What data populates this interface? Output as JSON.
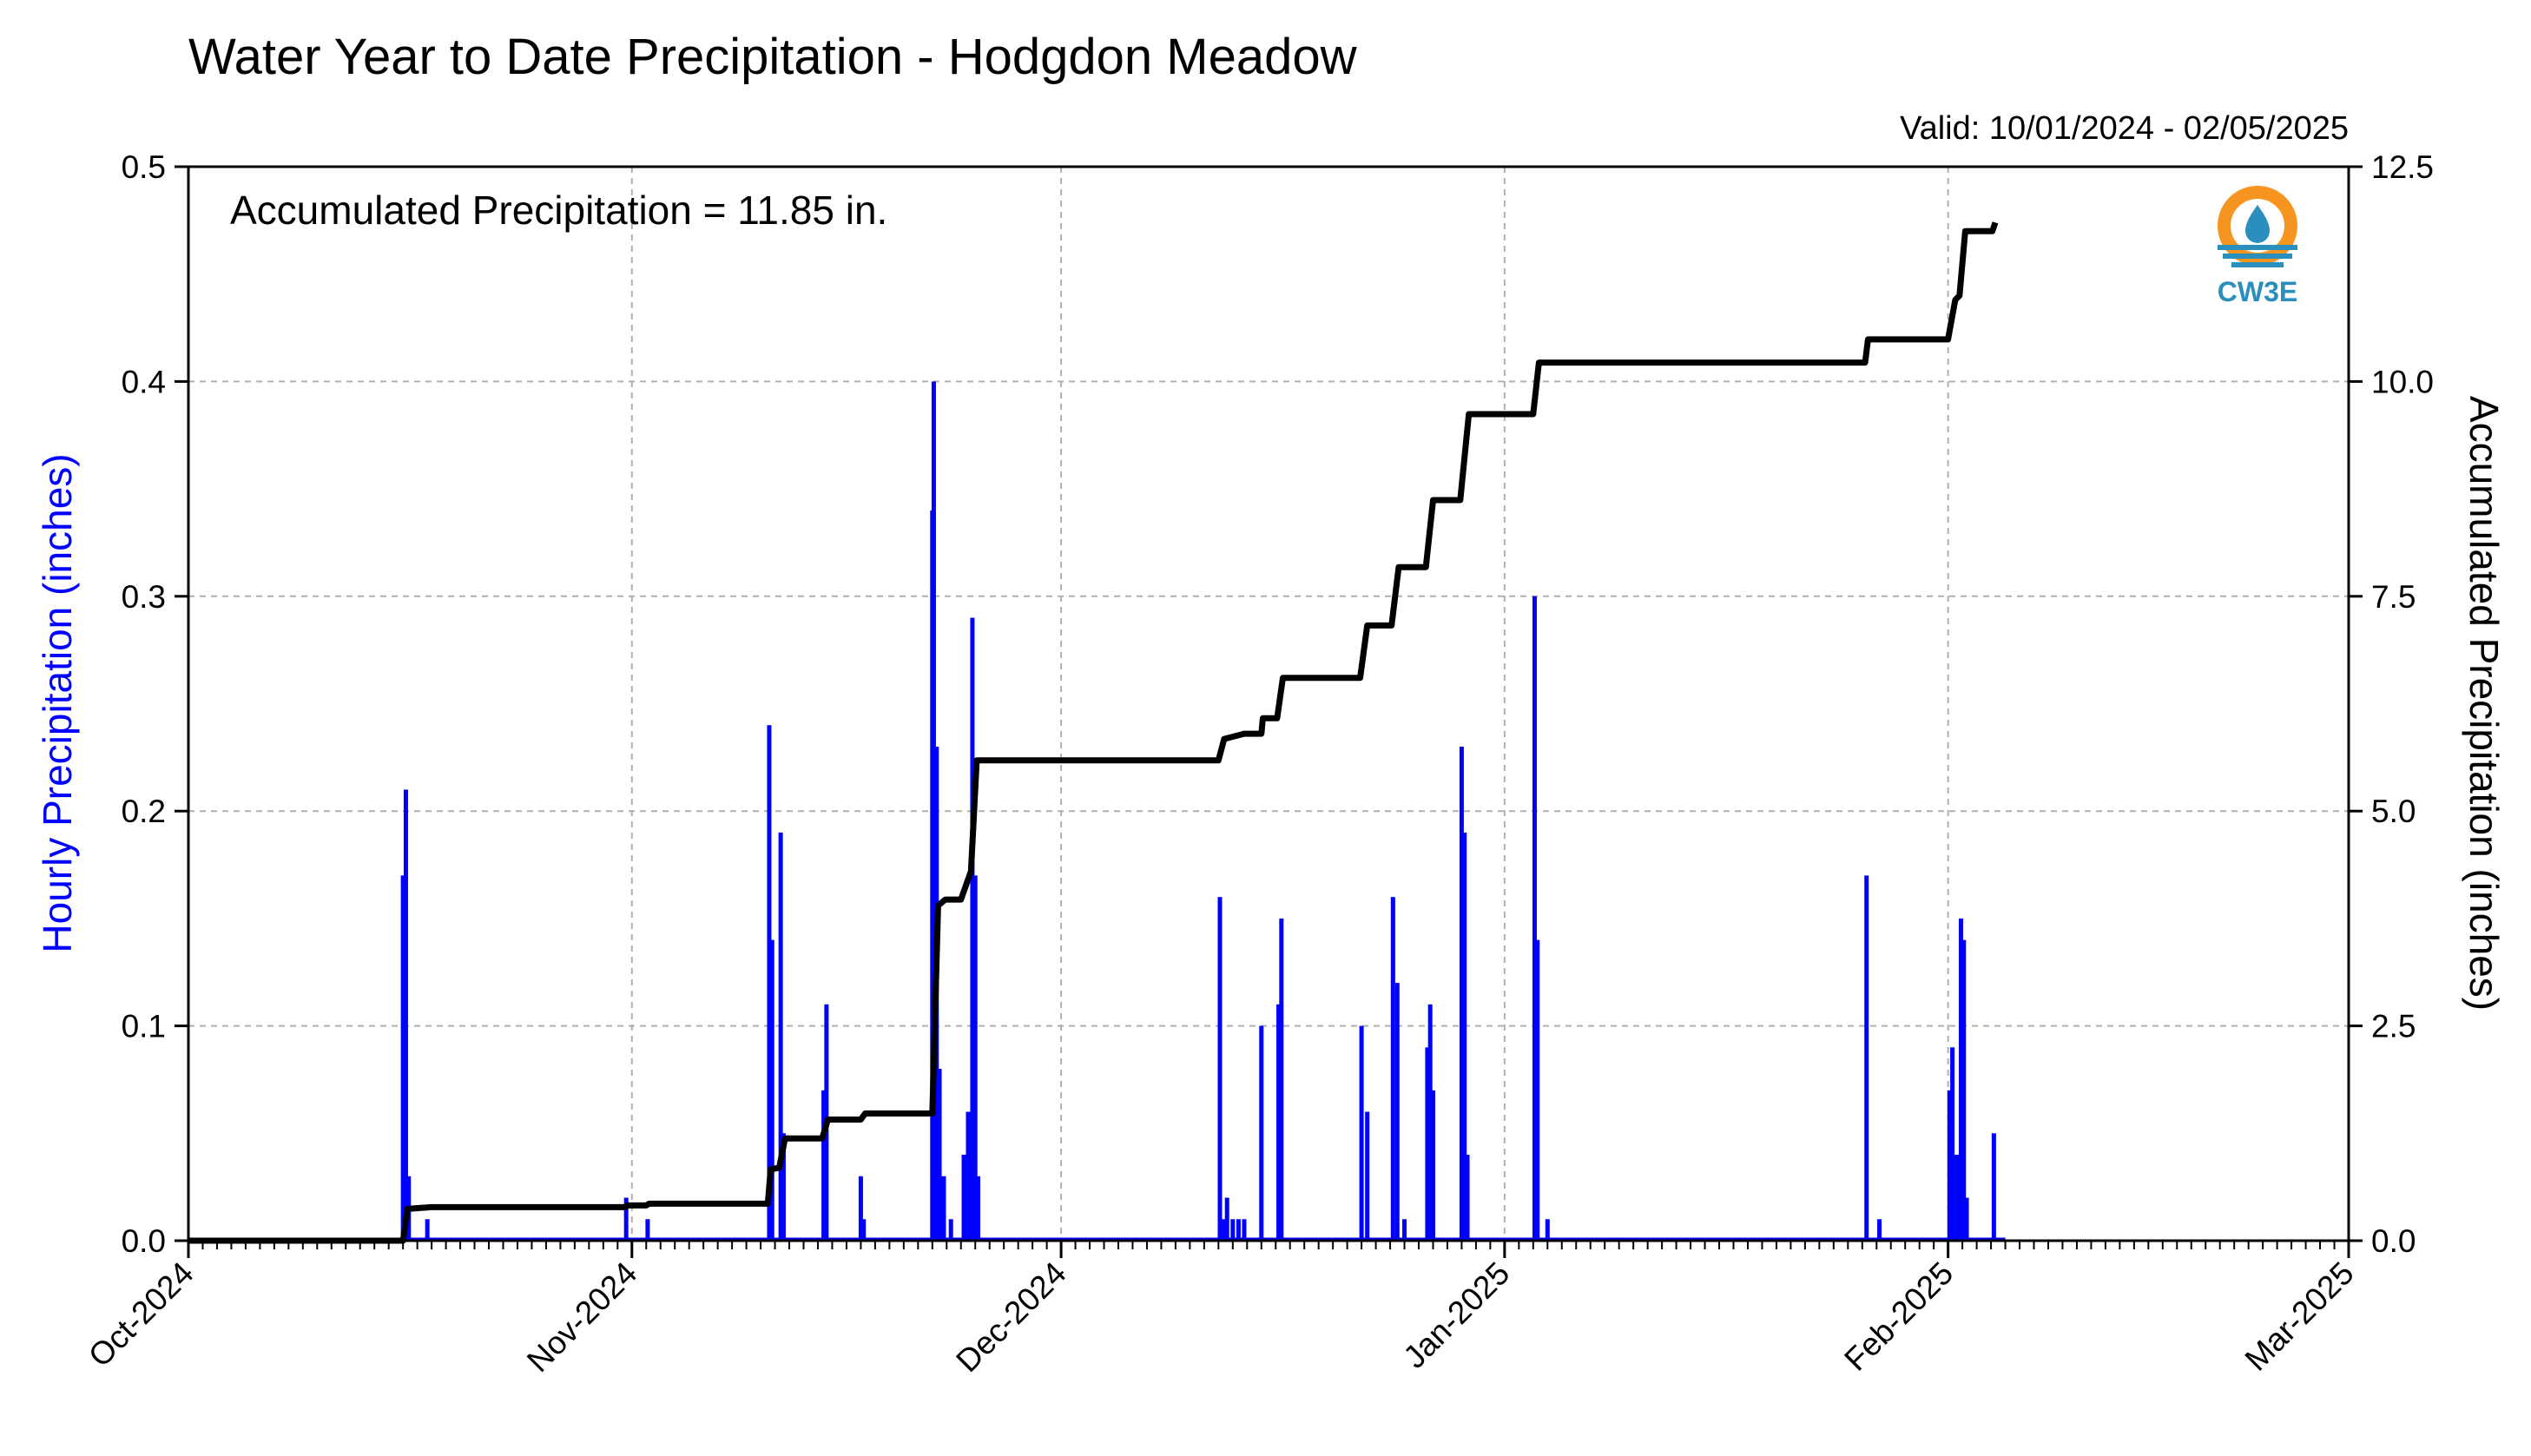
{
  "chart_data": {
    "type": "bar+line",
    "title": "Water Year to Date Precipitation - Hodgdon Meadow",
    "subtitle": "Valid: 10/01/2024 - 02/05/2025",
    "annotation": "Accumulated Precipitation = 11.85 in.",
    "ylabel_left": "Hourly Precipitation (inches)",
    "ylabel_right": "Accumulated Precipitation (inches)",
    "xlim": [
      "2024-10-01",
      "2025-03-01"
    ],
    "ylim_left": [
      0,
      0.5
    ],
    "ylim_right": [
      0,
      12.5
    ],
    "x_ticks": [
      "Oct-2024",
      "Nov-2024",
      "Dec-2024",
      "Jan-2025",
      "Feb-2025",
      "Mar-2025"
    ],
    "y_ticks_left": [
      "0.0",
      "0.1",
      "0.2",
      "0.3",
      "0.4",
      "0.5"
    ],
    "y_ticks_right": [
      "0.0",
      "2.5",
      "5.0",
      "7.5",
      "10.0",
      "12.5"
    ],
    "grid": true,
    "colors": {
      "hourly": "#0000ff",
      "accumulated": "#000000",
      "left_label": "#0000ff",
      "grid": "#b0b0b0"
    },
    "hourly_precip": [
      [
        "2024-10-16",
        0.17
      ],
      [
        "2024-10-16.2",
        0.21
      ],
      [
        "2024-10-16.4",
        0.03
      ],
      [
        "2024-10-17.7",
        0.01
      ],
      [
        "2024-10-31.6",
        0.02
      ],
      [
        "2024-11-02.1",
        0.01
      ],
      [
        "2024-11-10.6",
        0.24
      ],
      [
        "2024-11-10.8",
        0.14
      ],
      [
        "2024-11-11.4",
        0.19
      ],
      [
        "2024-11-11.6",
        0.05
      ],
      [
        "2024-11-14.4",
        0.07
      ],
      [
        "2024-11-14.6",
        0.11
      ],
      [
        "2024-11-17.0",
        0.03
      ],
      [
        "2024-11-17.2",
        0.01
      ],
      [
        "2024-11-22.0",
        0.34
      ],
      [
        "2024-11-22.1",
        0.4
      ],
      [
        "2024-11-22.3",
        0.23
      ],
      [
        "2024-11-22.5",
        0.08
      ],
      [
        "2024-11-22.8",
        0.03
      ],
      [
        "2024-11-23.3",
        0.01
      ],
      [
        "2024-11-24.2",
        0.04
      ],
      [
        "2024-11-24.5",
        0.06
      ],
      [
        "2024-11-24.8",
        0.29
      ],
      [
        "2024-11-25.0",
        0.17
      ],
      [
        "2024-11-25.2",
        0.03
      ],
      [
        "2024-12-12.1",
        0.16
      ],
      [
        "2024-12-12.4",
        0.01
      ],
      [
        "2024-12-12.6",
        0.02
      ],
      [
        "2024-12-13.0",
        0.01
      ],
      [
        "2024-12-13.4",
        0.01
      ],
      [
        "2024-12-13.8",
        0.01
      ],
      [
        "2024-12-15.0",
        0.1
      ],
      [
        "2024-12-16.2",
        0.11
      ],
      [
        "2024-12-16.4",
        0.15
      ],
      [
        "2024-12-22.0",
        0.1
      ],
      [
        "2024-12-22.4",
        0.06
      ],
      [
        "2024-12-24.2",
        0.16
      ],
      [
        "2024-12-24.5",
        0.12
      ],
      [
        "2024-12-25.0",
        0.01
      ],
      [
        "2024-12-26.6",
        0.09
      ],
      [
        "2024-12-26.8",
        0.11
      ],
      [
        "2024-12-27.0",
        0.07
      ],
      [
        "2024-12-29.0",
        0.23
      ],
      [
        "2024-12-29.2",
        0.19
      ],
      [
        "2024-12-29.4",
        0.04
      ],
      [
        "2025-01-03.1",
        0.3
      ],
      [
        "2025-01-03.3",
        0.14
      ],
      [
        "2025-01-04.0",
        0.01
      ],
      [
        "2025-01-26.3",
        0.17
      ],
      [
        "2025-01-27.2",
        0.01
      ],
      [
        "2025-02-01.1",
        0.07
      ],
      [
        "2025-02-01.3",
        0.09
      ],
      [
        "2025-02-01.6",
        0.04
      ],
      [
        "2025-02-01.9",
        0.15
      ],
      [
        "2025-02-02.1",
        0.14
      ],
      [
        "2025-02-02.3",
        0.02
      ],
      [
        "2025-02-04.2",
        0.05
      ]
    ],
    "accumulated_precip": [
      [
        "2024-10-01",
        0.0
      ],
      [
        "2024-10-16",
        0.0
      ],
      [
        "2024-10-16.3",
        0.37
      ],
      [
        "2024-10-18",
        0.39
      ],
      [
        "2024-10-31.5",
        0.39
      ],
      [
        "2024-10-31.7",
        0.41
      ],
      [
        "2024-11-02",
        0.41
      ],
      [
        "2024-11-02.2",
        0.43
      ],
      [
        "2024-11-10.5",
        0.43
      ],
      [
        "2024-11-10.7",
        0.83
      ],
      [
        "2024-11-11.3",
        0.85
      ],
      [
        "2024-11-11.7",
        1.19
      ],
      [
        "2024-11-14.3",
        1.19
      ],
      [
        "2024-11-14.7",
        1.41
      ],
      [
        "2024-11-17",
        1.41
      ],
      [
        "2024-11-17.3",
        1.48
      ],
      [
        "2024-11-22",
        1.48
      ],
      [
        "2024-11-22.4",
        3.9
      ],
      [
        "2024-11-22.9",
        3.97
      ],
      [
        "2024-11-24",
        3.97
      ],
      [
        "2024-11-24.7",
        4.3
      ],
      [
        "2024-11-25.1",
        5.59
      ],
      [
        "2024-12-12",
        5.59
      ],
      [
        "2024-12-12.4",
        5.84
      ],
      [
        "2024-12-13.8",
        5.9
      ],
      [
        "2024-12-15",
        5.9
      ],
      [
        "2024-12-15.1",
        6.08
      ],
      [
        "2024-12-16.1",
        6.08
      ],
      [
        "2024-12-16.5",
        6.55
      ],
      [
        "2024-12-21.9",
        6.55
      ],
      [
        "2024-12-22.4",
        7.16
      ],
      [
        "2024-12-24.1",
        7.16
      ],
      [
        "2024-12-24.6",
        7.84
      ],
      [
        "2024-12-26.5",
        7.84
      ],
      [
        "2024-12-27",
        8.62
      ],
      [
        "2024-12-28.9",
        8.62
      ],
      [
        "2024-12-29.5",
        9.62
      ],
      [
        "2025-01-03",
        9.62
      ],
      [
        "2025-01-03.4",
        10.22
      ],
      [
        "2025-01-26.2",
        10.22
      ],
      [
        "2025-01-26.4",
        10.49
      ],
      [
        "2025-02-01",
        10.49
      ],
      [
        "2025-02-01.5",
        10.95
      ],
      [
        "2025-02-01.8",
        11.0
      ],
      [
        "2025-02-02.2",
        11.75
      ],
      [
        "2025-02-04.1",
        11.75
      ],
      [
        "2025-02-04.3",
        11.85
      ]
    ]
  },
  "logo": {
    "text": "CW3E",
    "colors": {
      "orange": "#f5941e",
      "blue": "#2a8fbd"
    }
  }
}
